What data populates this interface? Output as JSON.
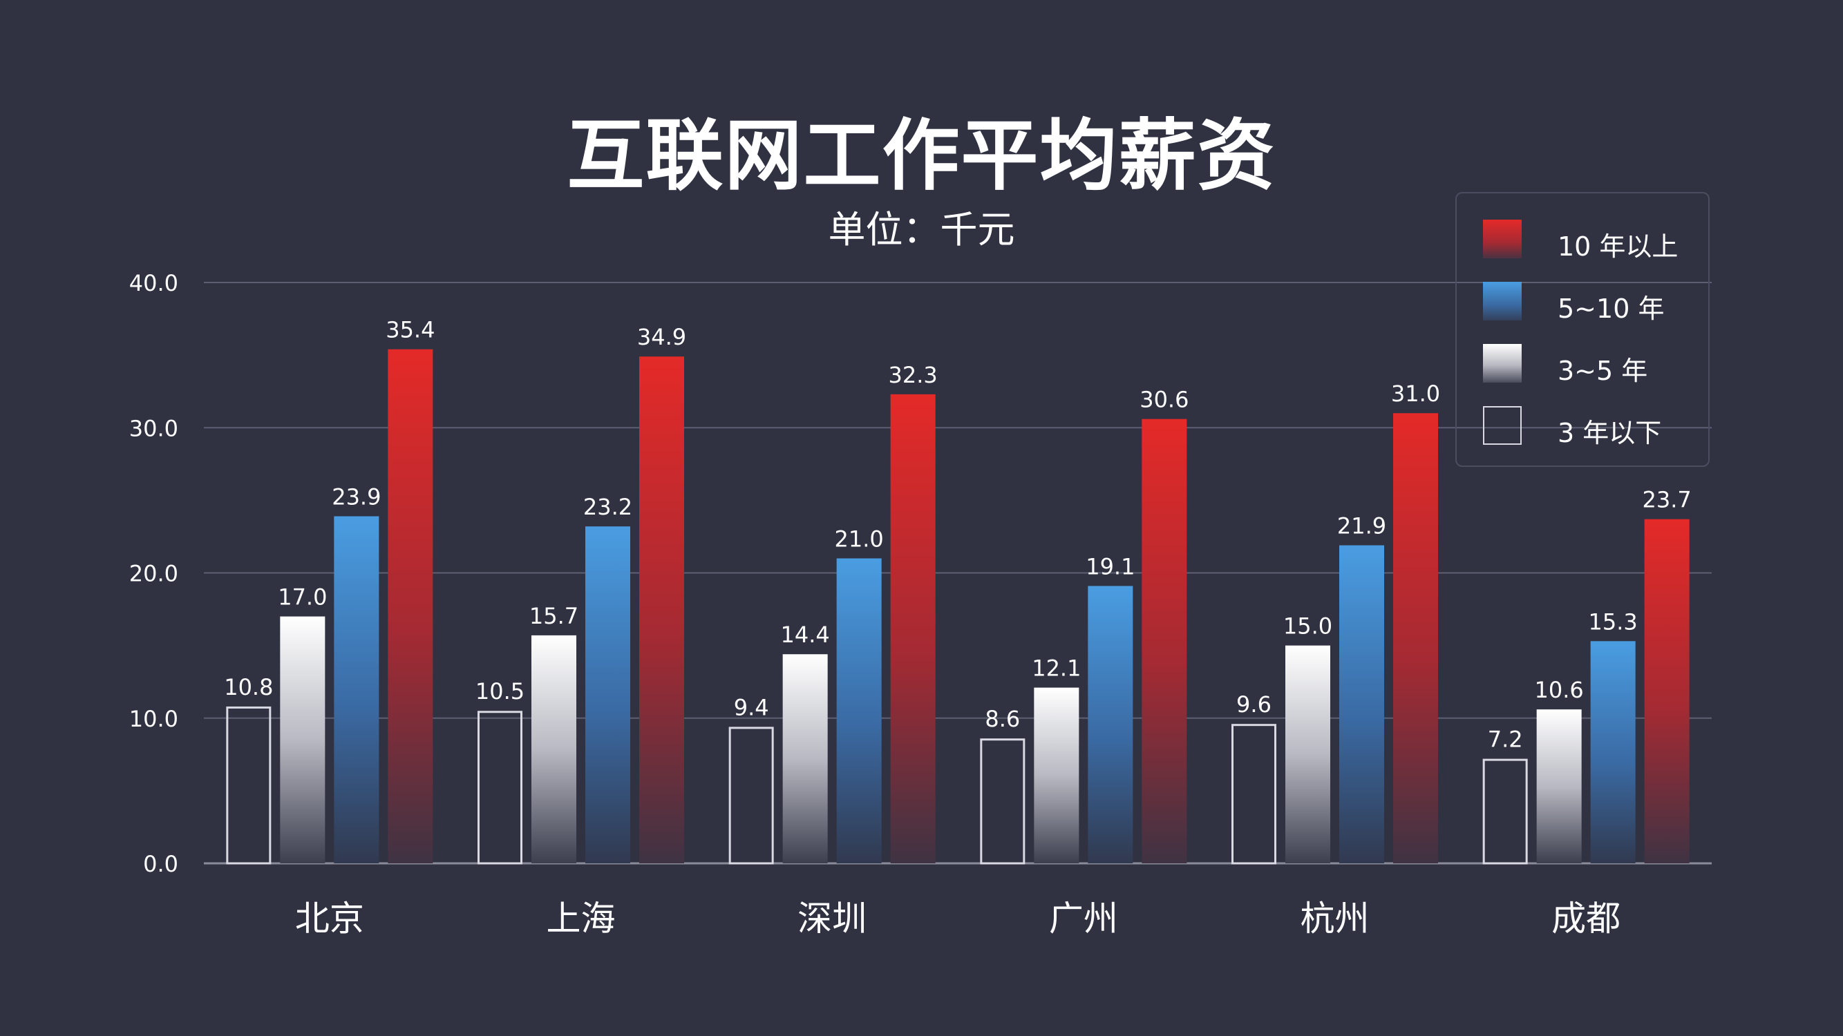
{
  "title": "互联网工作平均薪资",
  "subtitle": "单位：千元",
  "chart_data": {
    "type": "bar",
    "title": "互联网工作平均薪资",
    "subtitle": "单位：千元",
    "categories": [
      "北京",
      "上海",
      "深圳",
      "广州",
      "杭州",
      "成都"
    ],
    "series": [
      {
        "name": "3 年以下",
        "values": [
          10.8,
          10.5,
          9.4,
          8.6,
          9.6,
          7.2
        ],
        "color": "#e6e6ee",
        "style": "outline"
      },
      {
        "name": "3~5 年",
        "values": [
          17.0,
          15.7,
          14.4,
          12.1,
          15.0,
          10.6
        ],
        "color": "#ffffff",
        "style": "gradient"
      },
      {
        "name": "5~10 年",
        "values": [
          23.9,
          23.2,
          21.0,
          19.1,
          21.9,
          15.3
        ],
        "color": "#4a9de2",
        "style": "gradient"
      },
      {
        "name": "10 年以上",
        "values": [
          35.4,
          34.9,
          32.3,
          30.6,
          31.0,
          23.7
        ],
        "color": "#e42a28",
        "style": "gradient"
      }
    ],
    "y_ticks": [
      "0.0",
      "10.0",
      "20.0",
      "30.0",
      "40.0"
    ],
    "ylim": [
      0,
      40
    ],
    "grid": true,
    "legend_position": "top-right",
    "legend_order": [
      "10 年以上",
      "5~10 年",
      "3~5 年",
      "3 年以下"
    ],
    "background": "#303242"
  }
}
